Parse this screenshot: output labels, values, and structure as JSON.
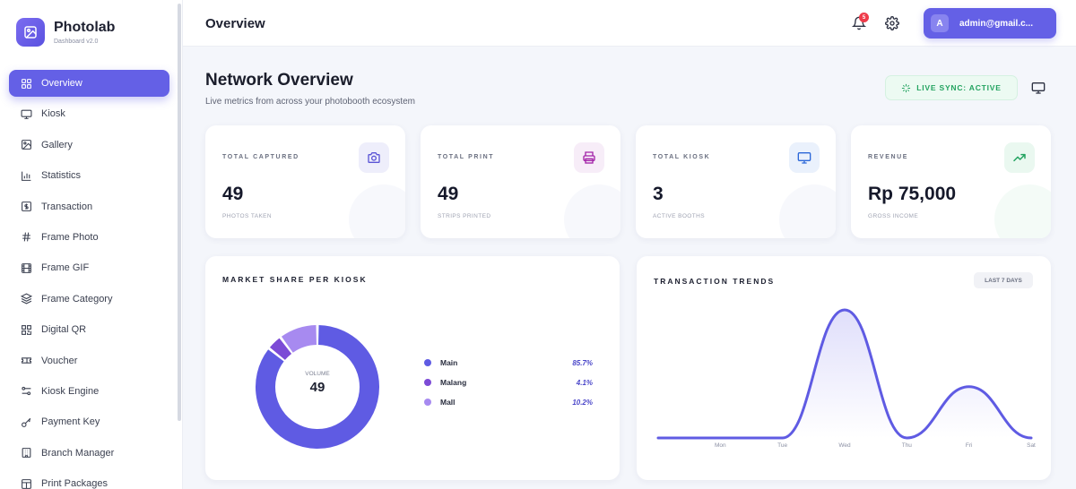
{
  "brand": {
    "name": "Photolab",
    "subtitle": "Dashboard v2.0"
  },
  "sidebar": {
    "items": [
      {
        "label": "Overview",
        "icon": "grid-icon",
        "active": true
      },
      {
        "label": "Kiosk",
        "icon": "monitor-icon"
      },
      {
        "label": "Gallery",
        "icon": "image-icon"
      },
      {
        "label": "Statistics",
        "icon": "bar-chart-icon"
      },
      {
        "label": "Transaction",
        "icon": "dollar-icon"
      },
      {
        "label": "Frame Photo",
        "icon": "hash-icon"
      },
      {
        "label": "Frame GIF",
        "icon": "film-icon"
      },
      {
        "label": "Frame Category",
        "icon": "layers-icon"
      },
      {
        "label": "Digital QR",
        "icon": "qr-icon"
      },
      {
        "label": "Voucher",
        "icon": "ticket-icon"
      },
      {
        "label": "Kiosk Engine",
        "icon": "sliders-icon"
      },
      {
        "label": "Payment Key",
        "icon": "key-icon"
      },
      {
        "label": "Branch Manager",
        "icon": "building-icon"
      },
      {
        "label": "Print Packages",
        "icon": "package-icon"
      }
    ]
  },
  "header": {
    "title": "Overview",
    "notification_count": "5",
    "user": {
      "initial": "A",
      "email": "admin@gmail.c..."
    }
  },
  "main": {
    "title": "Network Overview",
    "subtitle": "Live metrics from across your photobooth ecosystem",
    "live_sync": "LIVE SYNC: ACTIVE",
    "stats": [
      {
        "label": "TOTAL CAPTURED",
        "value": "49",
        "sub": "PHOTOS TAKEN",
        "icon": "camera-icon",
        "color": "#5b55d6",
        "bg": "#eeeefb"
      },
      {
        "label": "TOTAL PRINT",
        "value": "49",
        "sub": "STRIPS PRINTED",
        "icon": "printer-icon",
        "color": "#a323a8",
        "bg": "#f7edf8"
      },
      {
        "label": "TOTAL KIOSK",
        "value": "3",
        "sub": "ACTIVE BOOTHS",
        "icon": "monitor-icon",
        "color": "#2b67d8",
        "bg": "#eaf1fc"
      },
      {
        "label": "REVENUE",
        "value": "Rp 75,000",
        "sub": "GROSS INCOME",
        "icon": "trending-up-icon",
        "color": "#23a360",
        "bg": "#eaf8f0"
      }
    ],
    "market_share": {
      "title": "MARKET SHARE PER KIOSK",
      "center_label": "VOLUME",
      "center_value": "49",
      "legend": [
        {
          "name": "Main",
          "value": "85.7%"
        },
        {
          "name": "Malang",
          "value": "4.1%"
        },
        {
          "name": "Mall",
          "value": "10.2%"
        }
      ]
    },
    "trends": {
      "title": "TRANSACTION TRENDS",
      "range": "LAST 7 DAYS"
    }
  },
  "chart_data": [
    {
      "type": "pie",
      "title": "MARKET SHARE PER KIOSK",
      "categories": [
        "Main",
        "Malang",
        "Mall"
      ],
      "values": [
        85.7,
        4.1,
        10.2
      ],
      "colors": [
        "#5f5be3",
        "#7c4bd6",
        "#a78af0"
      ]
    },
    {
      "type": "area",
      "title": "TRANSACTION TRENDS",
      "categories": [
        "",
        "Mon",
        "Tue",
        "Wed",
        "Thu",
        "Fri",
        "Sat"
      ],
      "values": [
        0,
        0,
        0,
        100,
        0,
        40,
        0
      ],
      "color": "#5f5be3"
    }
  ]
}
